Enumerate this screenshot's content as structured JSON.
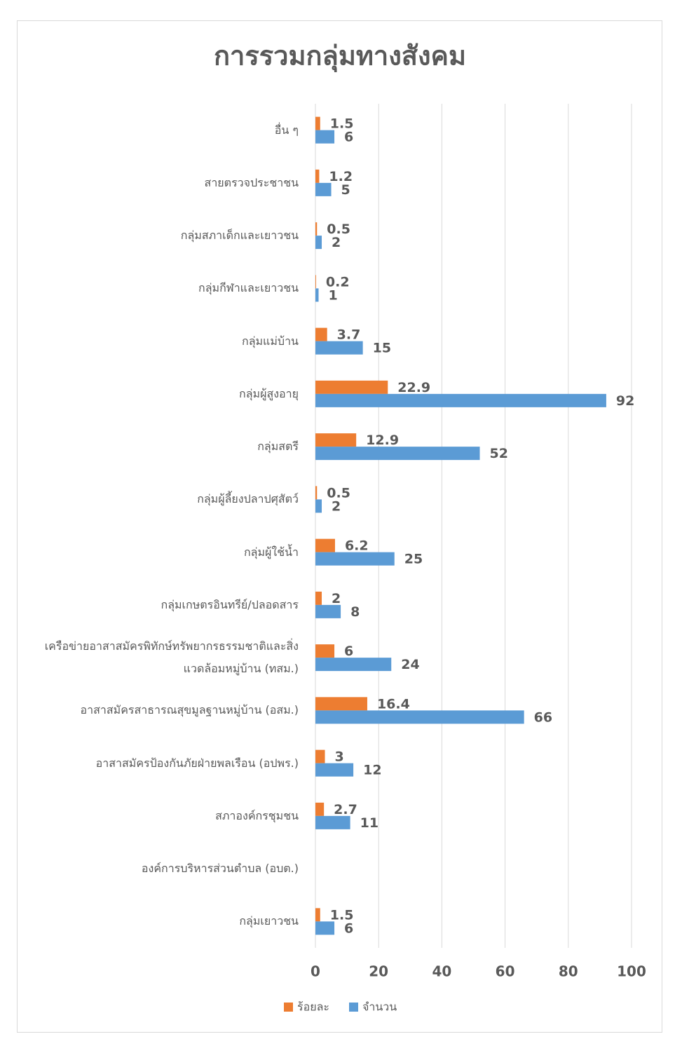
{
  "chart_data": {
    "type": "bar",
    "orientation": "horizontal",
    "title": "การรวมกลุ่มทางสังคม",
    "categories": [
      "อื่น ๆ",
      "สายตรวจประชาชน",
      "กลุ่มสภาเด็กและเยาวชน",
      "กลุ่มกีฬาและเยาวชน",
      "กลุ่มแม่บ้าน",
      "กลุ่มผู้สูงอายุ",
      "กลุ่มสตรี",
      "กลุ่มผู้ลี้ยงปลาปศุสัตว์",
      "กลุ่มผู้ใช้น้ำ",
      "กลุ่มเกษตรอินทรีย์/ปลอดสาร",
      "เครือข่ายอาสาสมัครพิทักษ์ทรัพยากรธรรมชาติและสิ่งแวดล้อมหมู่บ้าน (ทสม.)",
      "อาสาสมัครสาธารณสุขมูลฐานหมู่บ้าน (อสม.)",
      "อาสาสมัครป้องกันภัยฝ่ายพลเรือน (อปพร.)",
      "สภาองค์กรชุมชน",
      "องค์การบริหารส่วนตำบล (อบต.)",
      "กลุ่มเยาวชน"
    ],
    "series": [
      {
        "name": "ร้อยละ",
        "color": "#ed7d31",
        "values": [
          1.5,
          1.2,
          0.5,
          0.2,
          3.7,
          22.9,
          12.9,
          0.5,
          6.2,
          2,
          6,
          16.4,
          3,
          2.7,
          null,
          1.5
        ]
      },
      {
        "name": "จำนวน",
        "color": "#5b9bd5",
        "values": [
          6,
          5,
          2,
          1,
          15,
          92,
          52,
          2,
          25,
          8,
          24,
          66,
          12,
          11,
          null,
          6
        ]
      }
    ],
    "xlim": [
      0,
      100
    ],
    "xticks": [
      0,
      20,
      40,
      60,
      80,
      100
    ],
    "grid": true,
    "legend": "bottom"
  }
}
